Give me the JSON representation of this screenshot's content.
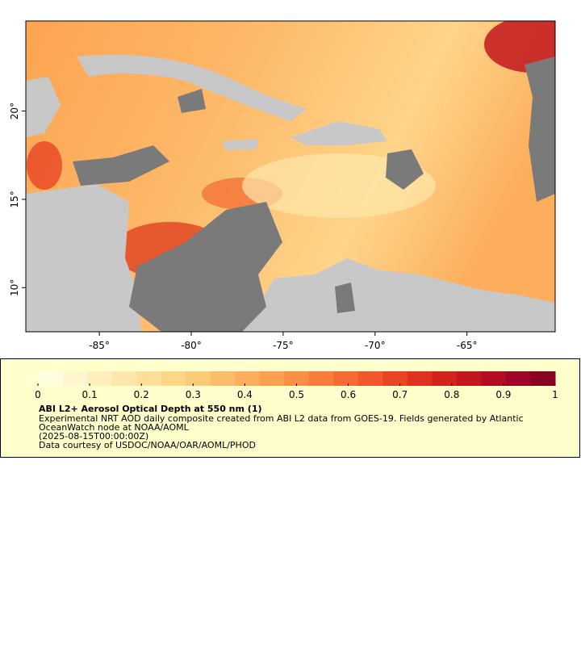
{
  "map": {
    "xlim": [
      -89,
      -60.2
    ],
    "ylim": [
      7.5,
      25.1
    ],
    "xticks": [
      {
        "value": -85,
        "label": "-85°"
      },
      {
        "value": -80,
        "label": "-80°"
      },
      {
        "value": -75,
        "label": "-75°"
      },
      {
        "value": -70,
        "label": "-70°"
      },
      {
        "value": -65,
        "label": "-65°"
      }
    ],
    "yticks": [
      {
        "value": 10,
        "label": "10°"
      },
      {
        "value": 15,
        "label": "15°"
      },
      {
        "value": 20,
        "label": "20°"
      }
    ]
  },
  "legend": {
    "range": [
      0,
      1
    ],
    "ticks": [
      0,
      0.1,
      0.2,
      0.3,
      0.4,
      0.5,
      0.6,
      0.7,
      0.8,
      0.9,
      1
    ],
    "colors": [
      "#fffde0",
      "#fff6d0",
      "#feefbd",
      "#fee7aa",
      "#fedf99",
      "#fed688",
      "#fdca78",
      "#fdbd6a",
      "#fdae5d",
      "#fc9f51",
      "#fc8f46",
      "#fa7d3c",
      "#f76a34",
      "#f2562c",
      "#ea4426",
      "#df3321",
      "#d2231d",
      "#c3161f",
      "#b20c24",
      "#9e0428",
      "#880024"
    ],
    "title": "ABI L2+ Aerosol Optical Depth at 550 nm (1)",
    "description": [
      "Experimental NRT AOD daily composite created from ABI L2 data from GOES-19. Fields generated by Atlantic",
      "OceanWatch node at NOAA/AOML",
      "(2025-08-15T00:00:00Z)",
      "Data courtesy of USDOC/NOAA/OAR/AOML/PHOD"
    ]
  }
}
